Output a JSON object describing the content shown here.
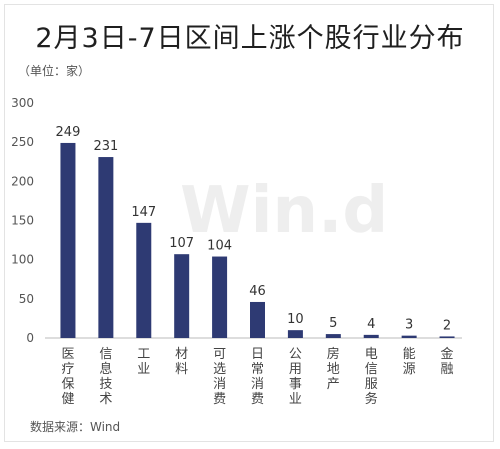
{
  "chart_data": {
    "type": "bar",
    "title": "2月3日-7日区间上涨个股行业分布",
    "unit_label": "（单位：家）",
    "source": "数据来源：Wind",
    "watermark": "Win.d",
    "categories": [
      "医疗保健",
      "信息技术",
      "工业",
      "材料",
      "可选消费",
      "日常消费",
      "公用事业",
      "房地产",
      "电信服务",
      "能源",
      "金融"
    ],
    "values": [
      249,
      231,
      147,
      107,
      104,
      46,
      10,
      5,
      4,
      3,
      2
    ],
    "ylim": [
      0,
      300
    ],
    "yticks": [
      0,
      50,
      100,
      150,
      200,
      250,
      300
    ],
    "grid": false,
    "bar_color": "#2e3a73"
  }
}
